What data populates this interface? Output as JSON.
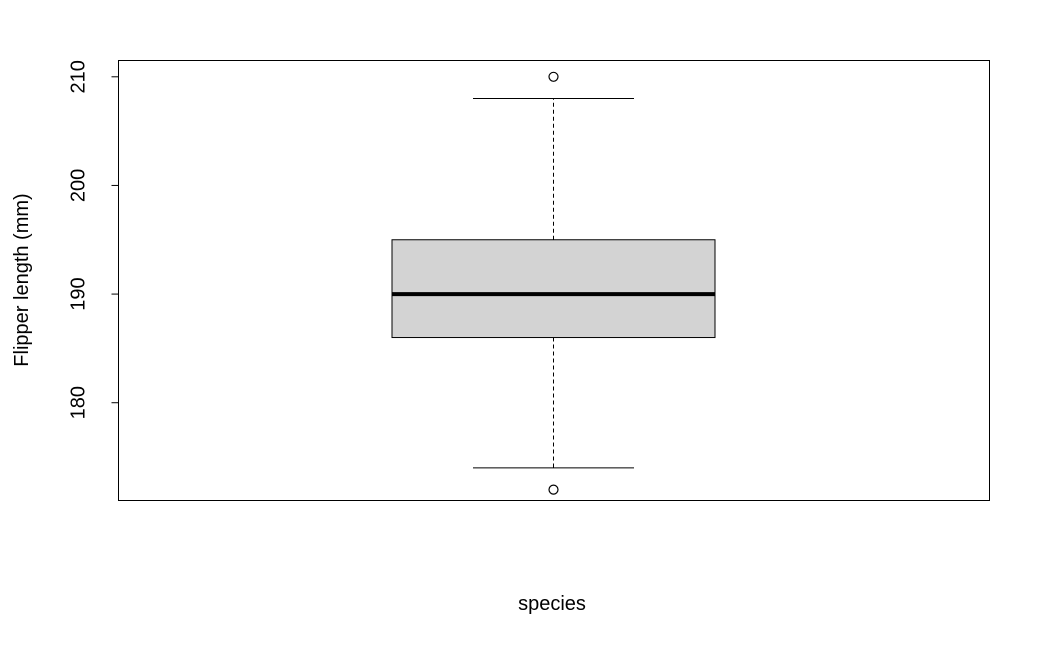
{
  "chart_data": {
    "type": "boxplot",
    "title": "",
    "xlabel": "species",
    "ylabel": "Flipper length (mm)",
    "ylim": [
      171.0,
      211.5
    ],
    "yticks": [
      180,
      190,
      200,
      210
    ],
    "grid": false,
    "legend": "none",
    "box_color": "#d3d3d3",
    "series": [
      {
        "whisker_low": 174,
        "q1": 186,
        "median": 190,
        "q3": 195,
        "whisker_high": 208,
        "outliers": [
          172,
          210
        ]
      }
    ]
  }
}
